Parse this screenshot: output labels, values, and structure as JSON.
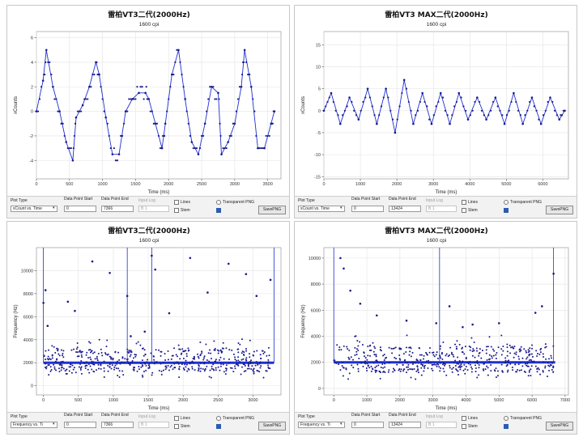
{
  "colors": {
    "series": "#1f2fd0",
    "grid": "#e3e3e3",
    "axis": "#555555"
  },
  "panels": [
    {
      "controls": {
        "plot_type_label": "Plot Type",
        "plot_type_value": "xCount vs. Time",
        "data_point_start_label": "Data Point Start",
        "data_point_start_value": "0",
        "data_point_end_label": "Data Point End",
        "data_point_end_value": "7366",
        "input_log_label": "Input Log",
        "input_log_value": "B 1",
        "lines_label": "Lines",
        "stem_label": "Stem",
        "transparent_png_label": "Transparent PNG",
        "save_png_label": "SavePNG"
      }
    },
    {
      "controls": {
        "plot_type_label": "Plot Type",
        "plot_type_value": "xCount vs. Time",
        "data_point_start_label": "Data Point Start",
        "data_point_start_value": "0",
        "data_point_end_label": "Data Point End",
        "data_point_end_value": "13424",
        "input_log_label": "Input Log",
        "input_log_value": "B 1",
        "lines_label": "Lines",
        "stem_label": "Stem",
        "transparent_png_label": "Transparent PNG",
        "save_png_label": "SavePNG"
      }
    },
    {
      "controls": {
        "plot_type_label": "Plot Type",
        "plot_type_value": "Frequency vs. Ti",
        "data_point_start_label": "Data Point Start",
        "data_point_start_value": "0",
        "data_point_end_label": "Data Point End",
        "data_point_end_value": "7366",
        "input_log_label": "Input Log",
        "input_log_value": "B 1",
        "lines_label": "Lines",
        "stem_label": "Stem",
        "transparent_png_label": "Transparent PNG",
        "save_png_label": "SavePNG"
      }
    },
    {
      "controls": {
        "plot_type_label": "Plot Type",
        "plot_type_value": "Frequency vs. Ti",
        "data_point_start_label": "Data Point Start",
        "data_point_start_value": "0",
        "data_point_end_label": "Data Point End",
        "data_point_end_value": "13424",
        "input_log_label": "Input Log",
        "input_log_value": "B 1",
        "lines_label": "Lines",
        "stem_label": "Stem",
        "transparent_png_label": "Transparent PNG",
        "save_png_label": "SavePNG"
      }
    }
  ],
  "chart_data": [
    {
      "type": "line",
      "title": "雷柏VT3二代(2000Hz)",
      "subtitle": "1600 cpi",
      "xlabel": "Time (ms)",
      "ylabel": "xCounts",
      "xlim": [
        0,
        3700
      ],
      "ylim": [
        -5.5,
        6.5
      ],
      "xticks": [
        0,
        500,
        1000,
        1500,
        2000,
        2500,
        3000,
        3500
      ],
      "yticks": [
        -4,
        -2,
        0,
        2,
        4,
        6
      ],
      "grid": true,
      "markers": true,
      "x": [
        0,
        100,
        150,
        250,
        350,
        450,
        550,
        600,
        700,
        800,
        900,
        950,
        1050,
        1150,
        1250,
        1350,
        1450,
        1550,
        1650,
        1700,
        1800,
        1900,
        1950,
        2050,
        2150,
        2250,
        2350,
        2450,
        2550,
        2650,
        2750,
        2800,
        2900,
        3000,
        3100,
        3150,
        3250,
        3350,
        3450,
        3550,
        3600
      ],
      "y": [
        0,
        2.5,
        5,
        2,
        0,
        -2.5,
        -4,
        -0.5,
        0.5,
        2,
        4,
        3,
        -0.5,
        -3.5,
        -3.5,
        0,
        1,
        1.5,
        1.5,
        1,
        -1,
        -3,
        -1,
        3,
        5,
        1,
        -2.5,
        -3.5,
        -1,
        2,
        1.5,
        -3.5,
        -2.5,
        -1,
        2,
        5,
        2,
        -3,
        -3,
        -1,
        0
      ]
    },
    {
      "type": "line",
      "title": "雷柏VT3  MAX二代(2000Hz)",
      "subtitle": "1600 cpi",
      "xlabel": "Time (ms)",
      "ylabel": "xCounts",
      "xlim": [
        0,
        6700
      ],
      "ylim": [
        -15.5,
        18
      ],
      "xticks": [
        0,
        1000,
        2000,
        3000,
        4000,
        5000,
        6000
      ],
      "yticks": [
        -15,
        -10,
        -5,
        0,
        5,
        10,
        15
      ],
      "grid": true,
      "markers": true,
      "x": [
        0,
        200,
        450,
        700,
        950,
        1200,
        1450,
        1700,
        1950,
        2200,
        2450,
        2700,
        2950,
        3200,
        3450,
        3700,
        3950,
        4200,
        4450,
        4700,
        4950,
        5200,
        5450,
        5700,
        5950,
        6200,
        6450,
        6600
      ],
      "y": [
        0,
        4,
        -3,
        3,
        -2,
        5,
        -3,
        5,
        -5,
        7,
        -3,
        4,
        -3,
        4,
        -3,
        4,
        -2,
        3,
        -2,
        3,
        -3,
        4,
        -3,
        3,
        -3,
        3,
        -2,
        0
      ]
    },
    {
      "type": "scatter",
      "title": "雷柏VT3二代(2000Hz)",
      "subtitle": "1600 cpi",
      "xlabel": "Time (ms)",
      "ylabel": "Frequency (Hz)",
      "xlim": [
        -100,
        3400
      ],
      "ylim": [
        -800,
        12000
      ],
      "xticks": [
        0,
        500,
        1000,
        1500,
        2000,
        2500,
        3000
      ],
      "yticks": [
        0,
        2000,
        4000,
        6000,
        8000,
        10000
      ],
      "grid": true,
      "baseline": 2000,
      "x": [
        0,
        30,
        60,
        350,
        450,
        700,
        950,
        1200,
        1250,
        1450,
        1550,
        1600,
        1800,
        2100,
        2350,
        2650,
        2900,
        3050,
        3250
      ],
      "y": [
        7200,
        8300,
        5200,
        7300,
        6500,
        10800,
        9800,
        7800,
        4300,
        4700,
        11300,
        10100,
        6300,
        11100,
        8100,
        10600,
        9700,
        7800,
        9200
      ]
    },
    {
      "type": "scatter",
      "title": "雷柏VT3  MAX二代(2000Hz)",
      "subtitle": "1600 cpi",
      "xlabel": "Time (ms)",
      "ylabel": "Frequency (Hz)",
      "xlim": [
        -300,
        7100
      ],
      "ylim": [
        -500,
        10800
      ],
      "xticks": [
        0,
        1000,
        2000,
        3000,
        4000,
        5000,
        6000,
        7000
      ],
      "yticks": [
        0,
        2000,
        4000,
        6000,
        8000,
        10000
      ],
      "grid": true,
      "baseline": 2000,
      "x": [
        200,
        300,
        500,
        800,
        1300,
        2200,
        3100,
        3500,
        3900,
        4200,
        5000,
        6100,
        6300,
        6650
      ],
      "y": [
        10000,
        9200,
        7500,
        6500,
        5600,
        5200,
        5000,
        6300,
        4700,
        4900,
        5000,
        5800,
        6300,
        8800
      ]
    }
  ]
}
